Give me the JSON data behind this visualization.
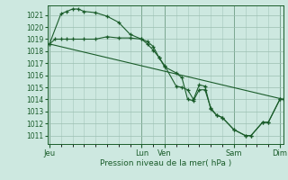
{
  "bg_color": "#cde8e0",
  "grid_color": "#9bbfb2",
  "line_color": "#1a5c2a",
  "title": "Pression niveau de la mer( hPa )",
  "ylabel_vals": [
    1011,
    1012,
    1013,
    1014,
    1015,
    1016,
    1017,
    1018,
    1019,
    1020,
    1021
  ],
  "ylim": [
    1010.3,
    1021.8
  ],
  "xlim": [
    -2,
    244
  ],
  "x_ticks": [
    0,
    96,
    120,
    192,
    240
  ],
  "x_tick_labels": [
    "Jeu",
    "Lun",
    "Ven",
    "Sam",
    "Dim"
  ],
  "series1": [
    [
      0,
      1018.6
    ],
    [
      12,
      1021.1
    ],
    [
      18,
      1021.3
    ],
    [
      24,
      1021.5
    ],
    [
      30,
      1021.5
    ],
    [
      36,
      1021.3
    ],
    [
      48,
      1021.2
    ],
    [
      60,
      1020.9
    ],
    [
      72,
      1020.4
    ],
    [
      84,
      1019.4
    ],
    [
      96,
      1019.0
    ],
    [
      102,
      1018.6
    ],
    [
      108,
      1018.1
    ],
    [
      114,
      1017.5
    ],
    [
      120,
      1016.7
    ],
    [
      132,
      1016.2
    ],
    [
      138,
      1015.8
    ],
    [
      144,
      1014.0
    ],
    [
      150,
      1013.9
    ],
    [
      156,
      1014.8
    ],
    [
      162,
      1014.8
    ],
    [
      168,
      1013.3
    ],
    [
      174,
      1012.7
    ],
    [
      180,
      1012.5
    ],
    [
      192,
      1011.5
    ],
    [
      204,
      1011.0
    ],
    [
      210,
      1011.0
    ],
    [
      222,
      1012.1
    ],
    [
      228,
      1012.1
    ],
    [
      240,
      1014.0
    ],
    [
      244,
      1014.0
    ]
  ],
  "series2": [
    [
      0,
      1018.6
    ],
    [
      6,
      1019.0
    ],
    [
      12,
      1019.0
    ],
    [
      18,
      1019.0
    ],
    [
      24,
      1019.0
    ],
    [
      36,
      1019.0
    ],
    [
      48,
      1019.0
    ],
    [
      60,
      1019.2
    ],
    [
      72,
      1019.1
    ],
    [
      84,
      1019.1
    ],
    [
      96,
      1019.0
    ],
    [
      102,
      1018.8
    ],
    [
      108,
      1018.4
    ],
    [
      114,
      1017.5
    ],
    [
      120,
      1016.8
    ],
    [
      132,
      1015.1
    ],
    [
      138,
      1015.0
    ],
    [
      144,
      1014.8
    ],
    [
      150,
      1014.0
    ],
    [
      156,
      1015.2
    ],
    [
      162,
      1015.1
    ],
    [
      168,
      1013.2
    ],
    [
      174,
      1012.7
    ],
    [
      180,
      1012.5
    ],
    [
      192,
      1011.5
    ],
    [
      204,
      1011.0
    ],
    [
      210,
      1011.0
    ],
    [
      222,
      1012.1
    ],
    [
      228,
      1012.1
    ],
    [
      240,
      1014.0
    ],
    [
      244,
      1014.0
    ]
  ],
  "series3": [
    [
      0,
      1018.6
    ],
    [
      244,
      1014.0
    ]
  ]
}
